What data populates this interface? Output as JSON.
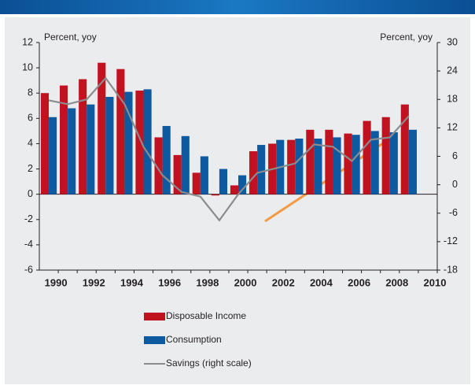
{
  "chart_data": {
    "type": "bar",
    "y_label": "Percent, yoy",
    "y2_label": "Percent, yoy",
    "categories": [
      "1990",
      null,
      "1992",
      null,
      "1994",
      null,
      "1996",
      null,
      "1998",
      null,
      "2000",
      null,
      "2002",
      null,
      "2004",
      null,
      "2006",
      null,
      "2008",
      null,
      "2010"
    ],
    "series": [
      {
        "name": "Disposable Income",
        "color": "#c1121f",
        "values": [
          8.0,
          8.6,
          9.1,
          10.4,
          9.9,
          8.2,
          4.5,
          3.1,
          1.7,
          -0.1,
          0.7,
          3.4,
          4.0,
          4.3,
          5.1,
          5.1,
          4.8,
          5.8,
          6.1,
          7.1,
          null
        ]
      },
      {
        "name": "Consumption",
        "color": "#0e5aa1",
        "values": [
          6.1,
          6.8,
          7.1,
          7.7,
          8.1,
          8.3,
          5.4,
          4.6,
          3.0,
          2.0,
          1.5,
          3.9,
          4.3,
          4.4,
          4.4,
          4.5,
          4.7,
          5.0,
          4.9,
          5.1,
          null
        ]
      },
      {
        "name": "Savings (right scale)",
        "color": "#8a8c8f",
        "type": "line",
        "axis": "y2",
        "values": [
          17.8,
          17.0,
          18.0,
          22.5,
          17.0,
          8.0,
          2.0,
          -1.5,
          -2.5,
          -7.5,
          -2.0,
          2.5,
          3.5,
          4.5,
          8.5,
          8.0,
          5.0,
          9.5,
          10.0,
          14.5,
          null
        ]
      }
    ],
    "ylim": [
      -6,
      12
    ],
    "yticks": [
      -6,
      -4,
      -2,
      0,
      2,
      4,
      6,
      8,
      10,
      12
    ],
    "y2lim": [
      -18,
      30
    ],
    "y2ticks": [
      -18,
      -12,
      -6,
      0,
      6,
      12,
      18,
      24,
      30
    ],
    "legend": "bottom"
  }
}
